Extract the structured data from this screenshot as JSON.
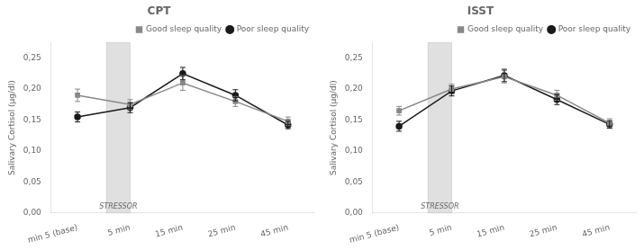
{
  "chart_data": [
    {
      "type": "line",
      "title": "CPT",
      "y_label": "Salivary Cortisol (µg/dl)",
      "categories": [
        "min 5 (base)",
        "5 min",
        "15 min",
        "25 min",
        "45 min"
      ],
      "series": [
        {
          "name": "Good sleep quality",
          "color": "#888888",
          "marker": "square",
          "values": [
            0.19,
            0.175,
            0.21,
            0.18,
            0.148
          ],
          "errors": [
            0.01,
            0.008,
            0.012,
            0.008,
            0.007
          ]
        },
        {
          "name": "Poor sleep quality",
          "color": "#1a1a1a",
          "marker": "circle",
          "values": [
            0.155,
            0.17,
            0.225,
            0.19,
            0.142
          ],
          "errors": [
            0.008,
            0.008,
            0.01,
            0.009,
            0.006
          ]
        }
      ],
      "ylim": [
        0.0,
        0.275
      ],
      "yticks": [
        {
          "value": 0.0,
          "label": "0,00"
        },
        {
          "value": 0.05,
          "label": "0,05"
        },
        {
          "value": 0.1,
          "label": "0,10"
        },
        {
          "value": 0.15,
          "label": "0,15"
        },
        {
          "value": 0.2,
          "label": "0,20"
        },
        {
          "value": 0.25,
          "label": "0,25"
        }
      ],
      "annotations": [
        {
          "text": "STRESSOR",
          "xmin": 0.55,
          "xmax": 1.0,
          "color": "#e0e0e0"
        }
      ],
      "legend": "upper right",
      "grid": false
    },
    {
      "type": "line",
      "title": "ISST",
      "y_label": "Salivary Cortisol (µg/dl)",
      "categories": [
        "min 5 (base)",
        "5 min",
        "15 min",
        "25 min",
        "45 min"
      ],
      "series": [
        {
          "name": "Good sleep quality",
          "color": "#888888",
          "marker": "square",
          "values": [
            0.165,
            0.2,
            0.22,
            0.19,
            0.145
          ],
          "errors": [
            0.007,
            0.008,
            0.01,
            0.008,
            0.007
          ]
        },
        {
          "name": "Poor sleep quality",
          "color": "#1a1a1a",
          "marker": "circle",
          "values": [
            0.14,
            0.197,
            0.222,
            0.183,
            0.143
          ],
          "errors": [
            0.008,
            0.008,
            0.01,
            0.008,
            0.006
          ]
        }
      ],
      "ylim": [
        0.0,
        0.275
      ],
      "yticks": [
        {
          "value": 0.0,
          "label": "0,00"
        },
        {
          "value": 0.05,
          "label": "0,05"
        },
        {
          "value": 0.1,
          "label": "0,10"
        },
        {
          "value": 0.15,
          "label": "0,15"
        },
        {
          "value": 0.2,
          "label": "0,20"
        },
        {
          "value": 0.25,
          "label": "0,25"
        }
      ],
      "annotations": [
        {
          "text": "STRESSOR",
          "xmin": 0.55,
          "xmax": 1.0,
          "color": "#e0e0e0"
        }
      ],
      "legend": "upper right",
      "grid": false
    }
  ]
}
